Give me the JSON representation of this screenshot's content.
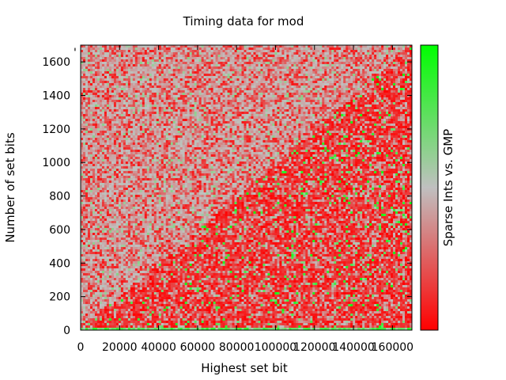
{
  "chart_data": {
    "type": "heatmap",
    "title": "Timing data for mod",
    "xlabel": "Highest set bit",
    "ylabel": "Number of set bits",
    "colorbar_label": "Sparse Ints vs. GMP",
    "xlim": [
      0,
      170000
    ],
    "ylim": [
      0,
      1700
    ],
    "x_ticks": [
      0,
      20000,
      40000,
      60000,
      80000,
      100000,
      120000,
      140000,
      160000
    ],
    "x_tick_labels": [
      "0",
      "20000",
      "40000",
      "60000",
      "80000",
      "100000",
      "120000",
      "140000",
      "160000"
    ],
    "y_ticks": [
      0,
      200,
      400,
      600,
      800,
      1000,
      1200,
      1400,
      1600
    ],
    "y_tick_labels": [
      "0",
      "200",
      "400",
      "600",
      "800",
      "1000",
      "1200",
      "1400",
      "1600"
    ],
    "colormap": {
      "low": "#ff0000",
      "mid": "#c0c0c0",
      "high": "#00ff00"
    },
    "regions": {
      "upper_left_above_diagonal": "mixed red and grey, mostly grey",
      "lower_right_below_diagonal": "mostly red with scattered grey and green",
      "bottom_row_near_zero": "green band"
    },
    "stray_mark": "'"
  }
}
